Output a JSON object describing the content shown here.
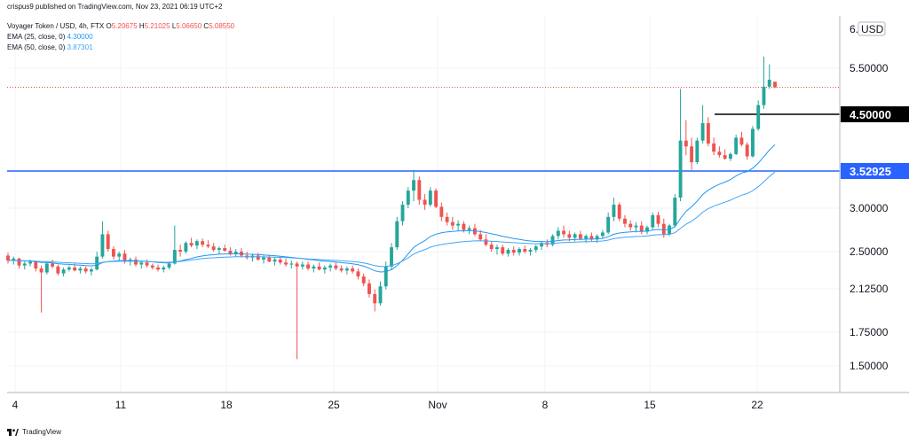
{
  "header": {
    "publish_line": "crispus9 published on TradingView.com, Nov 23, 2021 06:19 UTC+2",
    "symbol_line": "Voyager Token / USD, 4h, FTX",
    "ohlc": {
      "o_label": "O",
      "o_value": "5.20675",
      "h_label": "H",
      "h_value": "5.21025",
      "l_label": "L",
      "l_value": "5.06650",
      "c_label": "C",
      "c_value": "5.08550"
    },
    "ema25_label": "EMA (25, close, 0)",
    "ema25_value": "4.30000",
    "ema50_label": "EMA (50, close, 0)",
    "ema50_value": "3.87301"
  },
  "footer": {
    "brand": "TradingView"
  },
  "colors": {
    "up": "#26a69a",
    "down": "#ef5350",
    "ema25": "#2196f3",
    "ema50": "#42a5f5",
    "support_line": "#2962ff",
    "resistance_line": "#000000",
    "grid": "#f0f3fa"
  },
  "chart_data": {
    "type": "candlestick",
    "x_tick_labels": [
      "4",
      "11",
      "18",
      "25",
      "Nov",
      "8",
      "15",
      "22"
    ],
    "y_tick_labels": [
      "1.50000",
      "1.75000",
      "2.12500",
      "2.50000",
      "3.00000",
      "5.50000"
    ],
    "y_axis_unit": "USD",
    "y_axis_top_label": "6.",
    "ylim": [
      1.35,
      6.1
    ],
    "price_levels": [
      {
        "name": "resistance",
        "value": 4.5,
        "label": "4.50000",
        "color": "#000000"
      },
      {
        "name": "support",
        "value": 3.52925,
        "label": "3.52925",
        "color": "#2962ff"
      }
    ],
    "last_close": 5.0855,
    "candles": [
      [
        2.46,
        2.49,
        2.38,
        2.41
      ],
      [
        2.41,
        2.45,
        2.37,
        2.43
      ],
      [
        2.43,
        2.44,
        2.33,
        2.36
      ],
      [
        2.36,
        2.4,
        2.32,
        2.38
      ],
      [
        2.38,
        2.42,
        2.35,
        2.4
      ],
      [
        2.4,
        2.41,
        2.3,
        2.33
      ],
      [
        2.33,
        2.36,
        1.92,
        2.29
      ],
      [
        2.29,
        2.4,
        2.27,
        2.38
      ],
      [
        2.38,
        2.42,
        2.33,
        2.35
      ],
      [
        2.35,
        2.37,
        2.26,
        2.28
      ],
      [
        2.28,
        2.34,
        2.25,
        2.32
      ],
      [
        2.32,
        2.36,
        2.3,
        2.34
      ],
      [
        2.34,
        2.38,
        2.3,
        2.31
      ],
      [
        2.31,
        2.35,
        2.28,
        2.33
      ],
      [
        2.33,
        2.35,
        2.28,
        2.3
      ],
      [
        2.3,
        2.34,
        2.26,
        2.32
      ],
      [
        2.32,
        2.5,
        2.31,
        2.45
      ],
      [
        2.45,
        2.85,
        2.43,
        2.7
      ],
      [
        2.7,
        2.74,
        2.5,
        2.53
      ],
      [
        2.53,
        2.56,
        2.42,
        2.45
      ],
      [
        2.45,
        2.5,
        2.4,
        2.48
      ],
      [
        2.48,
        2.52,
        2.38,
        2.4
      ],
      [
        2.4,
        2.44,
        2.36,
        2.42
      ],
      [
        2.42,
        2.45,
        2.35,
        2.37
      ],
      [
        2.37,
        2.41,
        2.33,
        2.39
      ],
      [
        2.39,
        2.42,
        2.34,
        2.36
      ],
      [
        2.36,
        2.38,
        2.32,
        2.34
      ],
      [
        2.34,
        2.37,
        2.3,
        2.32
      ],
      [
        2.32,
        2.36,
        2.29,
        2.34
      ],
      [
        2.34,
        2.4,
        2.32,
        2.38
      ],
      [
        2.38,
        2.8,
        2.37,
        2.52
      ],
      [
        2.52,
        2.58,
        2.45,
        2.5
      ],
      [
        2.5,
        2.62,
        2.48,
        2.6
      ],
      [
        2.6,
        2.66,
        2.55,
        2.57
      ],
      [
        2.57,
        2.64,
        2.53,
        2.62
      ],
      [
        2.62,
        2.65,
        2.55,
        2.58
      ],
      [
        2.58,
        2.63,
        2.54,
        2.56
      ],
      [
        2.56,
        2.6,
        2.5,
        2.52
      ],
      [
        2.52,
        2.56,
        2.47,
        2.54
      ],
      [
        2.54,
        2.58,
        2.5,
        2.51
      ],
      [
        2.51,
        2.55,
        2.46,
        2.48
      ],
      [
        2.48,
        2.53,
        2.45,
        2.5
      ],
      [
        2.5,
        2.54,
        2.44,
        2.46
      ],
      [
        2.46,
        2.5,
        2.42,
        2.44
      ],
      [
        2.44,
        2.48,
        2.4,
        2.46
      ],
      [
        2.46,
        2.49,
        2.41,
        2.42
      ],
      [
        2.42,
        2.46,
        2.38,
        2.44
      ],
      [
        2.44,
        2.47,
        2.39,
        2.4
      ],
      [
        2.4,
        2.44,
        2.36,
        2.42
      ],
      [
        2.42,
        2.45,
        2.37,
        2.39
      ],
      [
        2.39,
        2.43,
        2.35,
        2.37
      ],
      [
        2.37,
        2.41,
        2.33,
        2.38
      ],
      [
        2.38,
        2.4,
        1.55,
        2.35
      ],
      [
        2.35,
        2.4,
        2.32,
        2.37
      ],
      [
        2.37,
        2.4,
        2.31,
        2.33
      ],
      [
        2.33,
        2.37,
        2.29,
        2.35
      ],
      [
        2.35,
        2.39,
        2.31,
        2.32
      ],
      [
        2.32,
        2.36,
        2.28,
        2.34
      ],
      [
        2.34,
        2.38,
        2.3,
        2.36
      ],
      [
        2.36,
        2.39,
        2.31,
        2.33
      ],
      [
        2.33,
        2.36,
        2.29,
        2.31
      ],
      [
        2.31,
        2.35,
        2.27,
        2.33
      ],
      [
        2.33,
        2.36,
        2.28,
        2.3
      ],
      [
        2.3,
        2.33,
        2.22,
        2.25
      ],
      [
        2.25,
        2.28,
        2.15,
        2.18
      ],
      [
        2.18,
        2.22,
        2.05,
        2.08
      ],
      [
        2.08,
        2.12,
        1.93,
        2.0
      ],
      [
        2.0,
        2.2,
        1.98,
        2.15
      ],
      [
        2.15,
        2.4,
        2.12,
        2.35
      ],
      [
        2.35,
        2.6,
        2.32,
        2.55
      ],
      [
        2.55,
        2.9,
        2.52,
        2.85
      ],
      [
        2.85,
        3.1,
        2.8,
        3.05
      ],
      [
        3.05,
        3.3,
        3.0,
        3.25
      ],
      [
        3.25,
        3.55,
        3.1,
        3.4
      ],
      [
        3.4,
        3.45,
        3.05,
        3.12
      ],
      [
        3.12,
        3.2,
        2.98,
        3.05
      ],
      [
        3.05,
        3.3,
        3.02,
        3.25
      ],
      [
        3.25,
        3.28,
        3.0,
        3.02
      ],
      [
        3.02,
        3.08,
        2.85,
        2.9
      ],
      [
        2.9,
        2.95,
        2.8,
        2.84
      ],
      [
        2.84,
        2.9,
        2.75,
        2.8
      ],
      [
        2.8,
        2.86,
        2.74,
        2.82
      ],
      [
        2.82,
        2.85,
        2.72,
        2.75
      ],
      [
        2.75,
        2.8,
        2.7,
        2.77
      ],
      [
        2.77,
        2.82,
        2.68,
        2.7
      ],
      [
        2.7,
        2.75,
        2.62,
        2.64
      ],
      [
        2.64,
        2.7,
        2.56,
        2.58
      ],
      [
        2.58,
        2.62,
        2.5,
        2.53
      ],
      [
        2.53,
        2.58,
        2.47,
        2.55
      ],
      [
        2.55,
        2.58,
        2.46,
        2.48
      ],
      [
        2.48,
        2.54,
        2.45,
        2.52
      ],
      [
        2.52,
        2.56,
        2.46,
        2.49
      ],
      [
        2.49,
        2.55,
        2.46,
        2.53
      ],
      [
        2.53,
        2.57,
        2.48,
        2.5
      ],
      [
        2.5,
        2.54,
        2.46,
        2.52
      ],
      [
        2.52,
        2.58,
        2.49,
        2.56
      ],
      [
        2.56,
        2.62,
        2.52,
        2.6
      ],
      [
        2.6,
        2.64,
        2.55,
        2.58
      ],
      [
        2.58,
        2.7,
        2.56,
        2.68
      ],
      [
        2.68,
        2.78,
        2.64,
        2.74
      ],
      [
        2.74,
        2.8,
        2.66,
        2.7
      ],
      [
        2.7,
        2.74,
        2.62,
        2.66
      ],
      [
        2.66,
        2.72,
        2.62,
        2.7
      ],
      [
        2.7,
        2.74,
        2.63,
        2.65
      ],
      [
        2.65,
        2.7,
        2.6,
        2.68
      ],
      [
        2.68,
        2.72,
        2.62,
        2.64
      ],
      [
        2.64,
        2.7,
        2.6,
        2.68
      ],
      [
        2.68,
        2.75,
        2.65,
        2.72
      ],
      [
        2.72,
        2.95,
        2.7,
        2.9
      ],
      [
        2.9,
        3.15,
        2.85,
        3.05
      ],
      [
        3.05,
        3.08,
        2.85,
        2.88
      ],
      [
        2.88,
        2.92,
        2.78,
        2.82
      ],
      [
        2.82,
        2.86,
        2.74,
        2.78
      ],
      [
        2.78,
        2.84,
        2.72,
        2.8
      ],
      [
        2.8,
        2.85,
        2.7,
        2.73
      ],
      [
        2.73,
        2.8,
        2.7,
        2.78
      ],
      [
        2.78,
        2.95,
        2.76,
        2.92
      ],
      [
        2.92,
        2.96,
        2.78,
        2.82
      ],
      [
        2.82,
        2.88,
        2.66,
        2.7
      ],
      [
        2.7,
        2.82,
        2.68,
        2.8
      ],
      [
        2.8,
        3.2,
        2.78,
        3.15
      ],
      [
        3.15,
        5.05,
        3.1,
        4.05
      ],
      [
        4.05,
        4.4,
        3.8,
        3.95
      ],
      [
        3.95,
        4.1,
        3.55,
        3.68
      ],
      [
        3.68,
        4.1,
        3.65,
        4.05
      ],
      [
        4.05,
        4.7,
        4.0,
        4.35
      ],
      [
        4.35,
        4.45,
        3.95,
        4.0
      ],
      [
        4.0,
        4.1,
        3.8,
        3.86
      ],
      [
        3.86,
        3.95,
        3.76,
        3.8
      ],
      [
        3.8,
        3.9,
        3.72,
        3.74
      ],
      [
        3.74,
        3.85,
        3.7,
        3.82
      ],
      [
        3.82,
        4.15,
        3.8,
        4.1
      ],
      [
        4.1,
        4.2,
        3.95,
        3.98
      ],
      [
        3.98,
        4.02,
        3.72,
        3.78
      ],
      [
        3.78,
        4.3,
        3.76,
        4.25
      ],
      [
        4.25,
        4.8,
        4.22,
        4.7
      ],
      [
        4.7,
        5.65,
        4.62,
        5.1
      ],
      [
        5.1,
        5.55,
        5.05,
        5.25
      ],
      [
        5.2068,
        5.2103,
        5.0665,
        5.0855
      ]
    ]
  }
}
